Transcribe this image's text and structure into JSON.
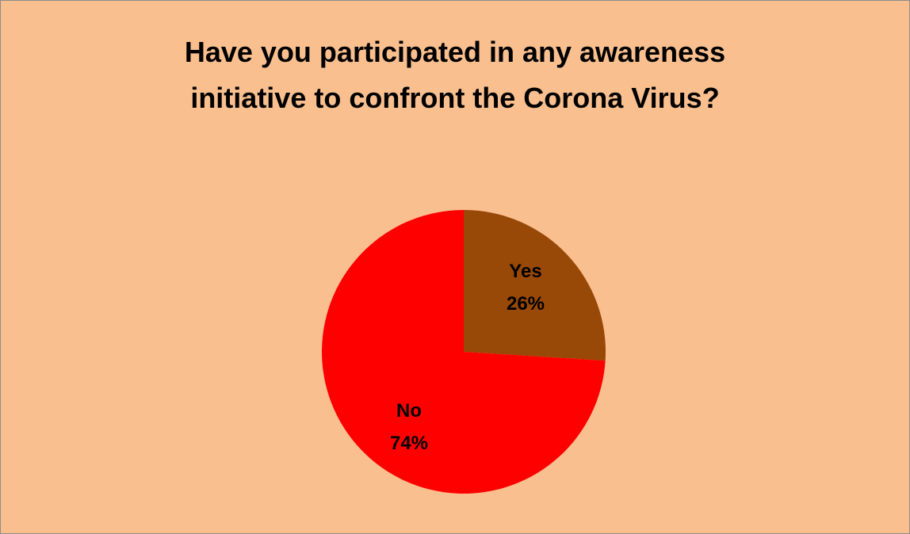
{
  "chart_data": {
    "type": "pie",
    "title_lines": [
      "Have you participated in any awareness",
      "initiative to confront the Corona Virus?"
    ],
    "slices": [
      {
        "label": "Yes",
        "value": 26,
        "value_text": "26%",
        "color": "#984807"
      },
      {
        "label": "No",
        "value": 74,
        "value_text": "74%",
        "color": "#ff0000"
      }
    ],
    "start_angle_deg": 0,
    "legend": "none",
    "data_labels": "inside"
  },
  "colors": {
    "background": "#f9bf8f",
    "border": "#8c8c8c"
  }
}
